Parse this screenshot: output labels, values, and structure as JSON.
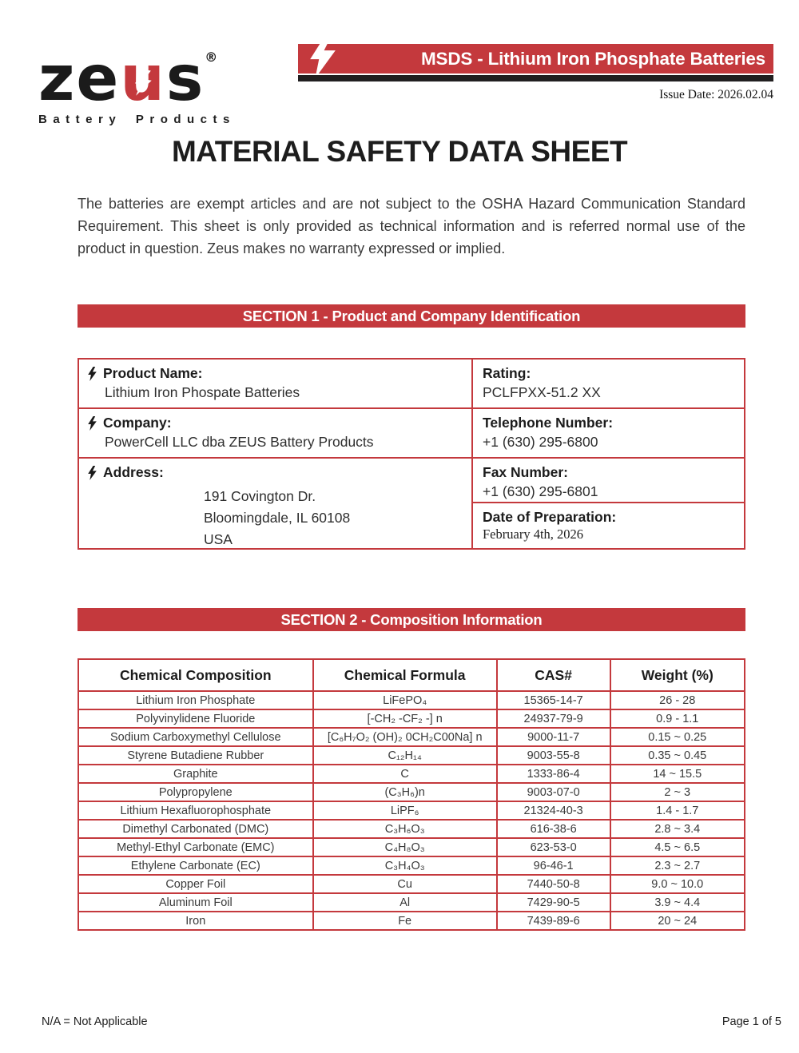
{
  "colors": {
    "accent_red": "#c4393d",
    "strip_black": "#211f20",
    "bolt_white": "#ffffff",
    "text_dark": "#1c1c1c"
  },
  "icons": {
    "logo_u_bolt": "lightning-bolt-icon",
    "banner_bolt": "lightning-bolt-icon",
    "field_bolt": "lightning-bolt-icon"
  },
  "logo": {
    "wordmark_ze": "ze",
    "wordmark_u": "u",
    "wordmark_s": "s",
    "registered": "®",
    "tagline": "Battery Products"
  },
  "header": {
    "banner_title": "MSDS - Lithium Iron Phosphate Batteries",
    "issue_date": "Issue Date: 2026.02.04"
  },
  "document": {
    "title": "MATERIAL SAFETY DATA SHEET",
    "intro": "The batteries are exempt articles and are not subject to the OSHA Hazard Communication Standard Requirement. This sheet is only provided as technical information and is referred normal use of the product in question. Zeus makes no warranty expressed or implied."
  },
  "section1": {
    "banner": "SECTION 1 - Product and Company Identification",
    "product_name_label": "Product Name:",
    "product_name_value": "Lithium Iron Phospate Batteries",
    "rating_label": "Rating:",
    "rating_value": "PCLFPXX-51.2 XX",
    "company_label": "Company:",
    "company_value": "PowerCell LLC dba ZEUS Battery Products",
    "telephone_label": "Telephone Number:",
    "telephone_value": "+1 (630) 295-6800",
    "address_label": "Address:",
    "address_lines": [
      "191 Covington Dr.",
      "Bloomingdale, IL 60108",
      "USA"
    ],
    "fax_label": "Fax Number:",
    "fax_value": "+1 (630) 295-6801",
    "prep_label": "Date of Preparation:",
    "prep_value": "February 4th, 2026"
  },
  "section2": {
    "banner": "SECTION 2 - Composition Information",
    "table": {
      "headers": [
        "Chemical Composition",
        "Chemical Formula",
        "CAS#",
        "Weight (%)"
      ],
      "rows": [
        [
          "Lithium Iron Phosphate",
          "LiFePO₄",
          "15365-14-7",
          "26 - 28"
        ],
        [
          "Polyvinylidene Fluoride",
          "[-CH₂ -CF₂ -] n",
          "24937-79-9",
          "0.9 - 1.1"
        ],
        [
          "Sodium Carboxymethyl Cellulose",
          "[C₆H₇O₂ (OH)₂ 0CH₂C00Na] n",
          "9000-11-7",
          "0.15 ~ 0.25"
        ],
        [
          "Styrene Butadiene Rubber",
          "C₁₂H₁₄",
          "9003-55-8",
          "0.35 ~ 0.45"
        ],
        [
          "Graphite",
          "C",
          "1333-86-4",
          "14 ~ 15.5"
        ],
        [
          "Polypropylene",
          "(C₃H₆)n",
          "9003-07-0",
          "2 ~ 3"
        ],
        [
          "Lithium Hexafluorophosphate",
          "LiPF₆",
          "21324-40-3",
          "1.4 - 1.7"
        ],
        [
          "Dimethyl Carbonated (DMC)",
          "C₃H₆O₃",
          "616-38-6",
          "2.8 ~ 3.4"
        ],
        [
          "Methyl-Ethyl Carbonate (EMC)",
          "C₄H₈O₃",
          "623-53-0",
          "4.5 ~ 6.5"
        ],
        [
          "Ethylene Carbonate (EC)",
          "C₃H₄O₃",
          "96-46-1",
          "2.3 ~ 2.7"
        ],
        [
          "Copper Foil",
          "Cu",
          "7440-50-8",
          "9.0 ~ 10.0"
        ],
        [
          "Aluminum Foil",
          "Al",
          "7429-90-5",
          "3.9 ~ 4.4"
        ],
        [
          "Iron",
          "Fe",
          "7439-89-6",
          "20 ~ 24"
        ]
      ]
    }
  },
  "footer": {
    "left": "N/A = Not Applicable",
    "right": "Page 1 of 5"
  }
}
